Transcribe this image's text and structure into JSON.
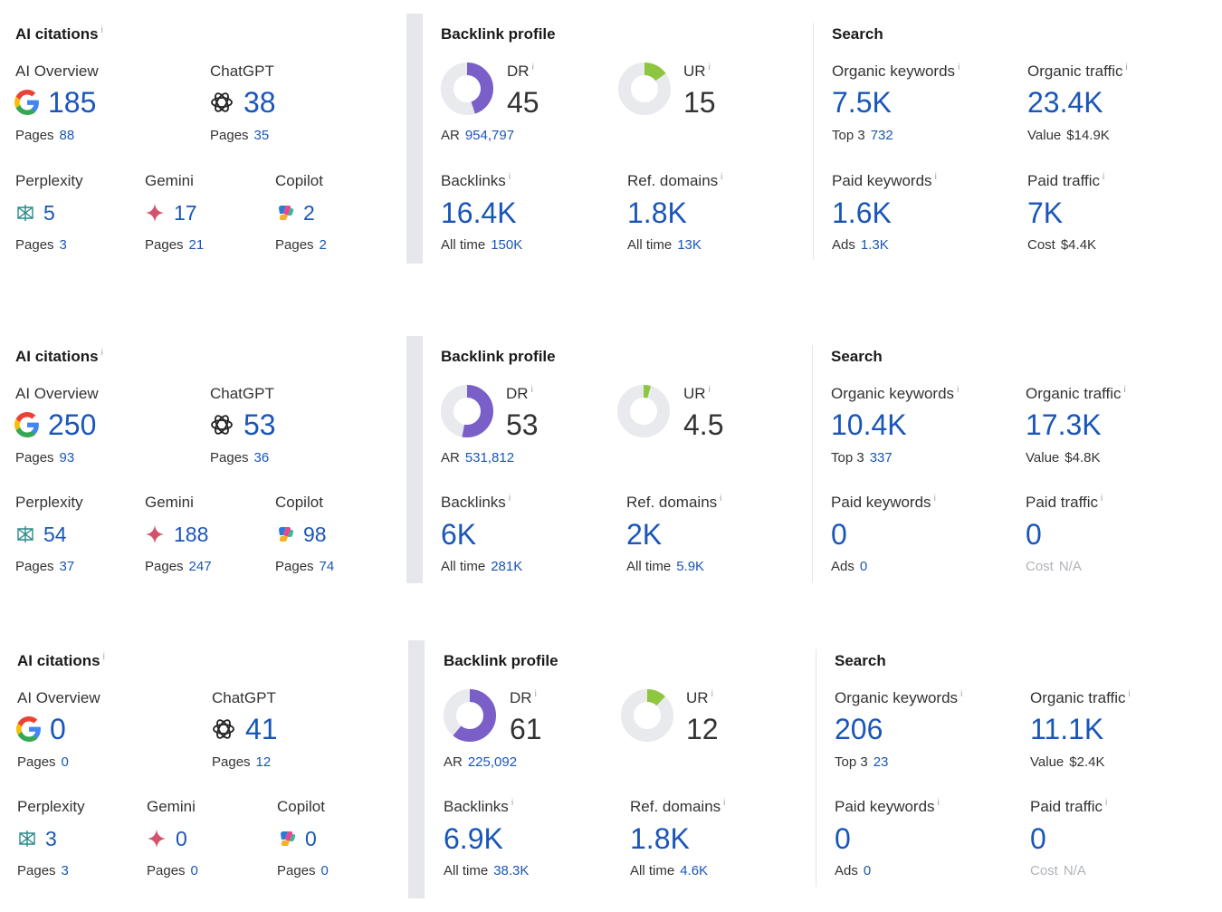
{
  "colors": {
    "accent": "#1a56b8",
    "dr": "#7a5fc8",
    "ur": "#8ec63f",
    "track": "#e8eaed"
  },
  "labels": {
    "ai_citations": "AI citations",
    "ai_overview": "AI Overview",
    "chatgpt": "ChatGPT",
    "perplexity": "Perplexity",
    "gemini": "Gemini",
    "copilot": "Copilot",
    "pages": "Pages",
    "backlink_profile": "Backlink profile",
    "dr": "DR",
    "ur": "UR",
    "ar": "AR",
    "backlinks": "Backlinks",
    "ref_domains": "Ref. domains",
    "all_time": "All time",
    "search": "Search",
    "organic_keywords": "Organic keywords",
    "organic_traffic": "Organic traffic",
    "top3": "Top 3",
    "value": "Value",
    "paid_keywords": "Paid keywords",
    "paid_traffic": "Paid traffic",
    "ads": "Ads",
    "cost": "Cost",
    "info": "i"
  },
  "icons": {
    "ai_overview": "google-g-icon",
    "chatgpt": "openai-icon",
    "perplexity": "perplexity-icon",
    "gemini": "gemini-sparkle-icon",
    "copilot": "copilot-icon"
  },
  "panels": [
    {
      "ai": {
        "ai_overview": "185",
        "ai_overview_pages": "88",
        "chatgpt": "38",
        "chatgpt_pages": "35",
        "perplexity": "5",
        "perplexity_pages": "3",
        "gemini": "17",
        "gemini_pages": "21",
        "copilot": "2",
        "copilot_pages": "2"
      },
      "backlink": {
        "dr": "45",
        "ur": "15",
        "ar": "954,797",
        "backlinks": "16.4K",
        "backlinks_all_time": "150K",
        "ref_domains": "1.8K",
        "ref_domains_all_time": "13K"
      },
      "search": {
        "organic_keywords": "7.5K",
        "top3": "732",
        "organic_traffic": "23.4K",
        "value": "$14.9K",
        "paid_keywords": "1.6K",
        "ads": "1.3K",
        "paid_traffic": "7K",
        "cost": "$4.4K"
      }
    },
    {
      "ai": {
        "ai_overview": "250",
        "ai_overview_pages": "93",
        "chatgpt": "53",
        "chatgpt_pages": "36",
        "perplexity": "54",
        "perplexity_pages": "37",
        "gemini": "188",
        "gemini_pages": "247",
        "copilot": "98",
        "copilot_pages": "74"
      },
      "backlink": {
        "dr": "53",
        "ur": "4.5",
        "ar": "531,812",
        "backlinks": "6K",
        "backlinks_all_time": "281K",
        "ref_domains": "2K",
        "ref_domains_all_time": "5.9K"
      },
      "search": {
        "organic_keywords": "10.4K",
        "top3": "337",
        "organic_traffic": "17.3K",
        "value": "$4.8K",
        "paid_keywords": "0",
        "ads": "0",
        "paid_traffic": "0",
        "cost": "N/A"
      }
    },
    {
      "ai": {
        "ai_overview": "0",
        "ai_overview_pages": "0",
        "chatgpt": "41",
        "chatgpt_pages": "12",
        "perplexity": "3",
        "perplexity_pages": "3",
        "gemini": "0",
        "gemini_pages": "0",
        "copilot": "0",
        "copilot_pages": "0"
      },
      "backlink": {
        "dr": "61",
        "ur": "12",
        "ar": "225,092",
        "backlinks": "6.9K",
        "backlinks_all_time": "38.3K",
        "ref_domains": "1.8K",
        "ref_domains_all_time": "4.6K"
      },
      "search": {
        "organic_keywords": "206",
        "top3": "23",
        "organic_traffic": "11.1K",
        "value": "$2.4K",
        "paid_keywords": "0",
        "ads": "0",
        "paid_traffic": "0",
        "cost": "N/A"
      }
    }
  ]
}
